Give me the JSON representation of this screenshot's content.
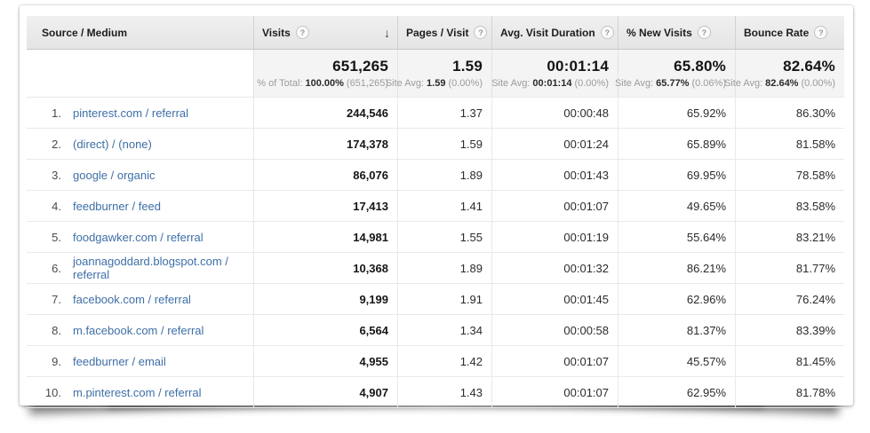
{
  "header": {
    "columns": [
      "Source / Medium",
      "Visits",
      "Pages / Visit",
      "Avg. Visit Duration",
      "% New Visits",
      "Bounce Rate"
    ],
    "help_icon": "?",
    "sort_descending_icon": "↓"
  },
  "summary": {
    "cells": [
      {
        "value": "651,265",
        "avg_label": "% of Total:",
        "avg_value": "100.00%",
        "avg_note": "(651,265)"
      },
      {
        "value": "1.59",
        "avg_label": "Site Avg:",
        "avg_value": "1.59",
        "avg_note": "(0.00%)"
      },
      {
        "value": "00:01:14",
        "avg_label": "Site Avg:",
        "avg_value": "00:01:14",
        "avg_note": "(0.00%)"
      },
      {
        "value": "65.80%",
        "avg_label": "Site Avg:",
        "avg_value": "65.77%",
        "avg_note": "(0.06%)"
      },
      {
        "value": "82.64%",
        "avg_label": "Site Avg:",
        "avg_value": "82.64%",
        "avg_note": "(0.00%)"
      }
    ]
  },
  "rows": [
    {
      "rank": "1.",
      "source": "pinterest.com / referral",
      "visits": "244,546",
      "pages_per_visit": "1.37",
      "avg_visit_duration": "00:00:48",
      "pct_new_visits": "65.92%",
      "bounce_rate": "86.30%"
    },
    {
      "rank": "2.",
      "source": "(direct) / (none)",
      "visits": "174,378",
      "pages_per_visit": "1.59",
      "avg_visit_duration": "00:01:24",
      "pct_new_visits": "65.89%",
      "bounce_rate": "81.58%"
    },
    {
      "rank": "3.",
      "source": "google / organic",
      "visits": "86,076",
      "pages_per_visit": "1.89",
      "avg_visit_duration": "00:01:43",
      "pct_new_visits": "69.95%",
      "bounce_rate": "78.58%"
    },
    {
      "rank": "4.",
      "source": "feedburner / feed",
      "visits": "17,413",
      "pages_per_visit": "1.41",
      "avg_visit_duration": "00:01:07",
      "pct_new_visits": "49.65%",
      "bounce_rate": "83.58%"
    },
    {
      "rank": "5.",
      "source": "foodgawker.com / referral",
      "visits": "14,981",
      "pages_per_visit": "1.55",
      "avg_visit_duration": "00:01:19",
      "pct_new_visits": "55.64%",
      "bounce_rate": "83.21%"
    },
    {
      "rank": "6.",
      "source": "joannagoddard.blogspot.com / referral",
      "visits": "10,368",
      "pages_per_visit": "1.89",
      "avg_visit_duration": "00:01:32",
      "pct_new_visits": "86.21%",
      "bounce_rate": "81.77%"
    },
    {
      "rank": "7.",
      "source": "facebook.com / referral",
      "visits": "9,199",
      "pages_per_visit": "1.91",
      "avg_visit_duration": "00:01:45",
      "pct_new_visits": "62.96%",
      "bounce_rate": "76.24%"
    },
    {
      "rank": "8.",
      "source": "m.facebook.com / referral",
      "visits": "6,564",
      "pages_per_visit": "1.34",
      "avg_visit_duration": "00:00:58",
      "pct_new_visits": "81.37%",
      "bounce_rate": "83.39%"
    },
    {
      "rank": "9.",
      "source": "feedburner / email",
      "visits": "4,955",
      "pages_per_visit": "1.42",
      "avg_visit_duration": "00:01:07",
      "pct_new_visits": "45.57%",
      "bounce_rate": "81.45%"
    },
    {
      "rank": "10.",
      "source": "m.pinterest.com / referral",
      "visits": "4,907",
      "pages_per_visit": "1.43",
      "avg_visit_duration": "00:01:07",
      "pct_new_visits": "62.95%",
      "bounce_rate": "81.78%"
    }
  ],
  "colors": {
    "link_blue": "#3e6fa7",
    "header_bg": "#ebebeb",
    "summary_cell_bg": "#f4f4f4",
    "row_border": "#e9e9e9"
  }
}
